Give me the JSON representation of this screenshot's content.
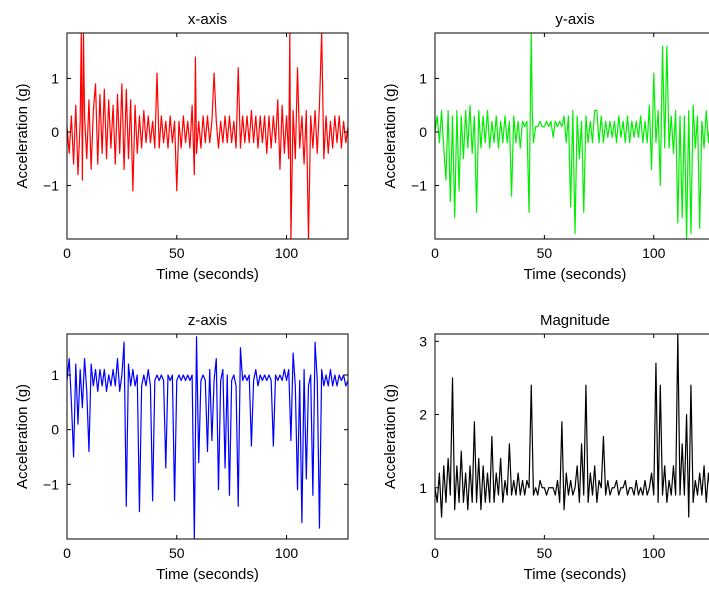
{
  "chart_data": [
    {
      "type": "line",
      "title": "x-axis",
      "xlabel": "Time (seconds)",
      "ylabel": "Acceleration (g)",
      "xlim": [
        0,
        128
      ],
      "ylim": [
        -2.0,
        1.85
      ],
      "xticks": [
        0,
        50,
        100
      ],
      "yticks": [
        -1,
        0,
        1
      ],
      "series": [
        {
          "color": "#ff0000",
          "x": [
            0,
            1,
            2,
            3,
            4,
            5,
            6,
            6.5,
            7,
            7.5,
            8,
            9,
            10,
            11,
            12,
            13,
            14,
            15,
            16,
            17,
            18,
            19,
            20,
            21,
            22,
            23,
            24,
            25,
            26,
            27,
            28,
            29,
            30,
            31,
            32,
            33,
            34,
            35,
            36,
            37,
            38,
            39,
            40,
            41,
            42,
            43,
            44,
            45,
            46,
            47,
            48,
            49,
            50,
            51,
            52,
            53,
            54,
            55,
            56,
            57,
            58,
            58.5,
            59,
            60,
            61,
            62,
            63,
            64,
            65,
            66,
            67,
            68,
            69,
            70,
            71,
            72,
            73,
            74,
            75,
            76,
            77,
            78,
            79,
            80,
            81,
            82,
            83,
            84,
            85,
            86,
            87,
            88,
            89,
            90,
            91,
            92,
            93,
            94,
            95,
            96,
            97,
            98,
            99,
            100,
            101,
            101.5,
            102,
            103,
            104,
            105,
            106,
            107,
            108,
            109,
            110,
            111,
            112,
            113,
            114,
            115,
            116,
            117,
            118,
            119,
            120,
            121,
            122,
            123,
            124,
            125,
            126,
            127,
            128
          ],
          "y": [
            0.1,
            -0.4,
            0.3,
            -0.6,
            0.5,
            -0.8,
            0.2,
            1.85,
            -0.9,
            1.85,
            0.3,
            -0.5,
            0.6,
            -0.7,
            0.4,
            0.9,
            -0.6,
            0.7,
            -0.4,
            0.8,
            -0.5,
            0.6,
            -0.3,
            0.5,
            -0.6,
            0.7,
            -0.4,
            0.9,
            -0.7,
            0.8,
            -0.5,
            0.6,
            -1.1,
            0.5,
            -0.4,
            0.3,
            -0.3,
            0.4,
            -0.2,
            0.3,
            -0.2,
            0.2,
            -0.3,
            1.1,
            -0.3,
            0.3,
            -0.2,
            0.2,
            -0.3,
            0.3,
            -0.2,
            0.2,
            -1.1,
            0.2,
            -0.3,
            0.3,
            -0.2,
            0.2,
            -0.3,
            0.5,
            -0.8,
            1.4,
            -0.4,
            0.2,
            -0.3,
            0.3,
            -0.2,
            0.3,
            -0.2,
            0.2,
            1.1,
            0.2,
            -0.3,
            0.2,
            -0.2,
            0.3,
            -0.2,
            0.3,
            -0.2,
            0.2,
            -0.3,
            1.2,
            -0.3,
            0.3,
            -0.2,
            0.3,
            -0.2,
            0.4,
            -0.2,
            0.3,
            -0.3,
            0.3,
            -0.2,
            0.3,
            -0.4,
            0.3,
            -0.3,
            0.3,
            -0.2,
            0.6,
            -0.7,
            0.5,
            -0.4,
            0.3,
            -0.5,
            1.85,
            -2.0,
            0.4,
            -0.5,
            1.2,
            -0.3,
            0.3,
            -0.6,
            0.4,
            -2.0,
            0.3,
            -0.3,
            0.4,
            -0.4,
            0.5,
            1.85,
            -0.5,
            0.3,
            -0.4,
            0.2,
            -0.3,
            0.3,
            -0.2,
            0.3,
            -0.3,
            0.2,
            -0.2,
            0.1
          ]
        }
      ]
    },
    {
      "type": "line",
      "title": "y-axis",
      "xlabel": "Time (seconds)",
      "ylabel": "Acceleration (g)",
      "xlim": [
        0,
        128
      ],
      "ylim": [
        -2.0,
        1.85
      ],
      "xticks": [
        0,
        50,
        100
      ],
      "yticks": [
        -1,
        0,
        1
      ],
      "series": [
        {
          "color": "#00ee00",
          "x": [
            0,
            1,
            2,
            3,
            4,
            5,
            6,
            7,
            8,
            9,
            10,
            11,
            12,
            13,
            14,
            15,
            16,
            17,
            18,
            19,
            20,
            21,
            22,
            23,
            24,
            25,
            26,
            27,
            28,
            29,
            30,
            31,
            32,
            33,
            34,
            35,
            36,
            37,
            38,
            39,
            40,
            41,
            42,
            43,
            44,
            44.5,
            45,
            46,
            47,
            48,
            49,
            50,
            51,
            52,
            53,
            54,
            55,
            56,
            57,
            58,
            59,
            60,
            61,
            62,
            63,
            64,
            65,
            66,
            67,
            68,
            69,
            70,
            71,
            72,
            73,
            74,
            75,
            76,
            77,
            78,
            79,
            80,
            81,
            82,
            83,
            84,
            85,
            86,
            87,
            88,
            89,
            90,
            91,
            92,
            93,
            94,
            95,
            96,
            97,
            98,
            99,
            100,
            101,
            102,
            103,
            104,
            105,
            106,
            107,
            108,
            109,
            110,
            111,
            112,
            113,
            114,
            115,
            116,
            117,
            118,
            119,
            120,
            121,
            122,
            123,
            124,
            125,
            126,
            127,
            128
          ],
          "y": [
            0.0,
            0.3,
            -0.2,
            0.4,
            -0.3,
            -0.9,
            0.4,
            -1.3,
            0.3,
            -1.6,
            0.4,
            -1.1,
            0.3,
            -0.5,
            0.4,
            -0.3,
            0.5,
            -0.4,
            0.3,
            -1.5,
            0.4,
            -0.3,
            0.3,
            -0.2,
            0.4,
            -0.3,
            0.2,
            -0.2,
            0.3,
            -0.3,
            0.2,
            -0.2,
            0.3,
            -0.2,
            0.2,
            -1.2,
            0.3,
            -0.2,
            0.2,
            -0.3,
            0.2,
            0.1,
            0.2,
            -1.5,
            1.85,
            0.3,
            -0.2,
            0.1,
            0.1,
            0.2,
            0.1,
            0.1,
            0.2,
            0.1,
            0.2,
            -0.1,
            0.2,
            0.1,
            0.2,
            0.1,
            0.3,
            -0.2,
            0.3,
            -1.4,
            0.4,
            -1.9,
            0.3,
            -0.5,
            0.2,
            -1.5,
            0.3,
            -0.2,
            0.2,
            -0.2,
            0.4,
            0.4,
            -0.2,
            0.3,
            -0.2,
            0.2,
            -0.1,
            0.2,
            -0.1,
            0.2,
            -0.2,
            0.3,
            -0.1,
            0.2,
            -0.2,
            0.3,
            -0.2,
            0.2,
            -0.1,
            0.2,
            -0.1,
            0.3,
            -0.2,
            0.2,
            -0.2,
            0.5,
            -0.7,
            1.1,
            -0.2,
            0.4,
            -1.0,
            1.6,
            -0.3,
            1.6,
            -0.3,
            0.3,
            -0.4,
            0.4,
            -1.7,
            0.3,
            -1.6,
            0.3,
            -2.0,
            0.4,
            -1.9,
            0.5,
            -0.3,
            0.3,
            -1.8,
            0.2,
            -0.3,
            0.4,
            -0.2,
            0.3,
            -0.2,
            0.1
          ]
        }
      ]
    },
    {
      "type": "line",
      "title": "z-axis",
      "xlabel": "Time (seconds)",
      "ylabel": "Acceleration (g)",
      "xlim": [
        0,
        128
      ],
      "ylim": [
        -2.0,
        1.75
      ],
      "xticks": [
        0,
        50,
        100
      ],
      "yticks": [
        -1,
        0,
        1
      ],
      "series": [
        {
          "color": "#0000ff",
          "x": [
            0,
            1,
            2,
            3,
            4,
            5,
            6,
            7,
            8,
            9,
            10,
            11,
            12,
            13,
            14,
            15,
            16,
            17,
            18,
            19,
            20,
            21,
            22,
            23,
            24,
            25,
            26,
            27,
            28,
            29,
            30,
            31,
            32,
            33,
            34,
            35,
            36,
            37,
            38,
            39,
            40,
            41,
            42,
            43,
            44,
            45,
            46,
            47,
            48,
            49,
            50,
            51,
            52,
            53,
            54,
            55,
            56,
            57,
            58,
            59,
            60,
            61,
            62,
            63,
            64,
            65,
            66,
            67,
            68,
            69,
            70,
            71,
            72,
            73,
            74,
            75,
            76,
            77,
            78,
            79,
            80,
            81,
            82,
            83,
            84,
            85,
            86,
            87,
            88,
            89,
            90,
            91,
            92,
            93,
            94,
            95,
            96,
            97,
            98,
            99,
            100,
            101,
            102,
            103,
            104,
            105,
            106,
            107,
            108,
            109,
            110,
            111,
            112,
            113,
            114,
            115,
            116,
            117,
            118,
            119,
            120,
            121,
            122,
            123,
            124,
            125,
            126,
            127,
            128
          ],
          "y": [
            0.9,
            1.3,
            0.5,
            -0.5,
            1.2,
            0.1,
            1.1,
            0.4,
            1.3,
            0.7,
            -0.4,
            1.2,
            0.8,
            1.1,
            0.7,
            1.1,
            0.8,
            1.1,
            0.7,
            1.0,
            0.8,
            1.1,
            0.8,
            1.3,
            0.7,
            1.0,
            1.6,
            -1.4,
            1.2,
            0.8,
            1.1,
            0.8,
            1.0,
            -1.5,
            0.8,
            1.0,
            0.8,
            1.1,
            0.8,
            -1.3,
            0.9,
            1.0,
            0.9,
            1.0,
            0.9,
            -0.7,
            1.0,
            0.9,
            1.0,
            -1.3,
            0.9,
            1.0,
            0.9,
            1.0,
            0.9,
            1.0,
            0.9,
            1.0,
            -2.0,
            1.7,
            -0.6,
            0.9,
            1.0,
            0.9,
            -0.4,
            1.1,
            -0.2,
            0.9,
            1.3,
            -1.1,
            0.9,
            1.1,
            -0.7,
            1.0,
            -1.2,
            0.9,
            1.0,
            0.8,
            -1.4,
            1.5,
            0.9,
            1.0,
            0.9,
            1.0,
            -0.3,
            0.9,
            1.1,
            0.8,
            1.0,
            0.9,
            1.0,
            0.9,
            1.0,
            0.9,
            -0.3,
            1.0,
            0.9,
            1.0,
            0.9,
            1.1,
            0.9,
            1.1,
            -0.2,
            1.4,
            0.8,
            -1.1,
            0.9,
            -1.7,
            1.1,
            -0.9,
            0.8,
            1.0,
            -1.2,
            1.6,
            0.9,
            -1.8,
            1.1,
            0.8,
            1.0,
            0.8,
            1.1,
            0.8,
            1.0,
            0.8,
            1.0,
            0.9,
            1.0,
            0.8,
            0.9
          ]
        }
      ]
    },
    {
      "type": "line",
      "title": "Magnitude",
      "xlabel": "Time (seconds)",
      "ylabel": "Acceleration (g)",
      "xlim": [
        0,
        128
      ],
      "ylim": [
        0.3,
        3.1
      ],
      "xticks": [
        0,
        50,
        100
      ],
      "yticks": [
        1,
        2,
        3
      ],
      "series": [
        {
          "color": "#000000",
          "x": [
            0,
            1,
            2,
            3,
            4,
            5,
            6,
            7,
            8,
            9,
            10,
            11,
            12,
            13,
            14,
            15,
            16,
            17,
            18,
            19,
            20,
            21,
            22,
            23,
            24,
            25,
            26,
            27,
            28,
            29,
            30,
            31,
            32,
            33,
            34,
            35,
            36,
            37,
            38,
            39,
            40,
            41,
            42,
            43,
            44,
            45,
            46,
            47,
            48,
            49,
            50,
            51,
            52,
            53,
            54,
            55,
            56,
            57,
            58,
            59,
            60,
            61,
            62,
            63,
            64,
            65,
            66,
            67,
            68,
            69,
            70,
            71,
            72,
            73,
            74,
            75,
            76,
            77,
            78,
            79,
            80,
            81,
            82,
            83,
            84,
            85,
            86,
            87,
            88,
            89,
            90,
            91,
            92,
            93,
            94,
            95,
            96,
            97,
            98,
            99,
            100,
            101,
            102,
            103,
            104,
            105,
            106,
            107,
            108,
            109,
            110,
            111,
            112,
            113,
            114,
            115,
            116,
            117,
            118,
            119,
            120,
            121,
            122,
            123,
            124,
            125,
            126,
            127,
            128
          ],
          "y": [
            1.0,
            0.8,
            1.2,
            0.6,
            1.3,
            0.8,
            1.4,
            0.9,
            2.5,
            0.7,
            1.3,
            0.8,
            1.5,
            0.8,
            1.2,
            0.7,
            1.3,
            0.8,
            1.9,
            0.8,
            1.4,
            0.7,
            1.3,
            0.8,
            1.2,
            0.8,
            1.7,
            0.8,
            1.2,
            0.9,
            1.4,
            0.8,
            1.1,
            0.9,
            1.6,
            0.9,
            1.1,
            0.9,
            1.2,
            0.9,
            1.1,
            0.9,
            1.1,
            1.0,
            2.4,
            0.9,
            1.0,
            0.9,
            1.1,
            1.0,
            1.0,
            0.9,
            1.0,
            1.0,
            1.0,
            0.9,
            1.1,
            0.8,
            1.9,
            0.7,
            1.2,
            0.9,
            1.1,
            0.9,
            1.0,
            1.3,
            0.8,
            1.6,
            0.9,
            2.4,
            0.8,
            1.2,
            0.9,
            1.3,
            0.8,
            1.1,
            1.0,
            1.7,
            0.9,
            1.1,
            0.9,
            1.0,
            1.0,
            1.1,
            0.9,
            1.0,
            1.0,
            1.1,
            0.9,
            1.0,
            1.0,
            0.9,
            1.1,
            0.9,
            1.0,
            0.9,
            1.1,
            0.9,
            1.0,
            1.2,
            0.9,
            2.7,
            0.8,
            2.4,
            0.9,
            1.3,
            0.8,
            1.1,
            0.9,
            1.3,
            0.9,
            3.1,
            0.9,
            1.6,
            0.9,
            2.0,
            0.6,
            2.4,
            0.8,
            1.1,
            0.9,
            1.2,
            0.9,
            1.3,
            0.8,
            1.2,
            0.9,
            1.1,
            1.0
          ]
        }
      ]
    }
  ]
}
